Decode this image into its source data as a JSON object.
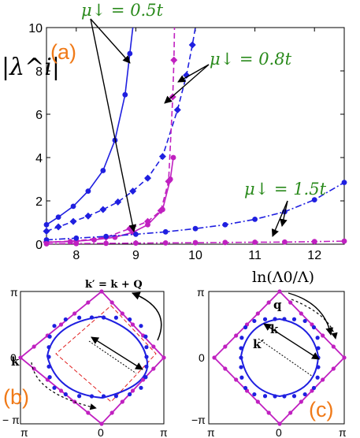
{
  "chart_data": {
    "type": "line",
    "panel_label": "(a)",
    "xlabel": "ln(Λ0/Λ)",
    "ylabel": "|λ^i|",
    "xlim": [
      7.5,
      12.5
    ],
    "ylim": [
      0,
      10
    ],
    "xticks": [
      8,
      9,
      10,
      11,
      12
    ],
    "yticks": [
      0,
      2,
      4,
      6,
      8,
      10
    ],
    "series": [
      {
        "style": "solid",
        "marker": "circle",
        "color": "#1f1fe0",
        "x": [
          7.5,
          7.7,
          7.95,
          8.2,
          8.45,
          8.65,
          8.82,
          8.9,
          8.95
        ],
        "y": [
          0.9,
          1.25,
          1.75,
          2.45,
          3.4,
          4.8,
          6.9,
          8.8,
          10
        ]
      },
      {
        "style": "solid",
        "marker": "circle",
        "color": "#c020c0",
        "x": [
          7.5,
          7.9,
          8.3,
          8.65,
          8.95,
          9.2,
          9.45,
          9.58,
          9.63
        ],
        "y": [
          0.1,
          0.12,
          0.2,
          0.32,
          0.55,
          0.9,
          1.6,
          3.0,
          4.0
        ]
      },
      {
        "style": "dashed",
        "marker": "diamond",
        "color": "#1f1fe0",
        "x": [
          7.5,
          7.7,
          7.95,
          8.2,
          8.45,
          8.7,
          8.95,
          9.2,
          9.45,
          9.7,
          9.85,
          9.95,
          10.0
        ],
        "y": [
          0.6,
          0.8,
          1.05,
          1.3,
          1.6,
          1.95,
          2.45,
          3.05,
          4.05,
          6.2,
          7.8,
          9.2,
          10
        ]
      },
      {
        "style": "dashed",
        "marker": "diamond",
        "color": "#c020c0",
        "x": [
          7.5,
          8.0,
          8.5,
          8.9,
          9.2,
          9.42,
          9.55,
          9.62,
          9.64,
          9.65
        ],
        "y": [
          0.1,
          0.15,
          0.32,
          0.72,
          1.05,
          1.55,
          2.9,
          6.8,
          8.5,
          10
        ]
      },
      {
        "style": "dashdot",
        "marker": "circle",
        "color": "#1f1fe0",
        "x": [
          7.5,
          8.0,
          8.5,
          9.0,
          9.5,
          10.0,
          10.5,
          11.0,
          11.5,
          12.0,
          12.5
        ],
        "y": [
          0.2,
          0.28,
          0.36,
          0.46,
          0.57,
          0.72,
          0.9,
          1.15,
          1.5,
          2.05,
          2.85
        ]
      },
      {
        "style": "dashdot",
        "marker": "circle",
        "color": "#c020c0",
        "x": [
          7.5,
          8.0,
          8.5,
          9.0,
          9.5,
          10.0,
          10.5,
          11.0,
          11.5,
          12.0,
          12.5
        ],
        "y": [
          0.02,
          0.03,
          0.04,
          0.05,
          0.06,
          0.07,
          0.08,
          0.09,
          0.1,
          0.12,
          0.14
        ]
      }
    ],
    "annotations": [
      "μ↓ = 0.5t",
      "μ↓ = 0.8t",
      "μ↓ = 1.5t"
    ]
  },
  "inset_b": {
    "label": "(b)",
    "arrow_label": "k′ = k + Q",
    "k_label": "k",
    "ticks": {
      "pi_top": "π",
      "zero_left": "0",
      "minus_pi": "− π",
      "bottom_left": "π",
      "bottom_mid": "0",
      "bottom_right": "π"
    }
  },
  "inset_c": {
    "label": "(c)",
    "q_label": "q",
    "k_label": "k",
    "kp_label": "k′",
    "ticks": {
      "pi_top": "π",
      "zero_left": "0",
      "minus_pi": "−π",
      "bottom_left": "π",
      "bottom_mid": "0",
      "bottom_right": "π"
    }
  },
  "colors": {
    "blue": "#1f1fe0",
    "magenta": "#c020c0",
    "orange": "#f07a18",
    "green": "#2a8a1c",
    "red": "#e02020"
  }
}
